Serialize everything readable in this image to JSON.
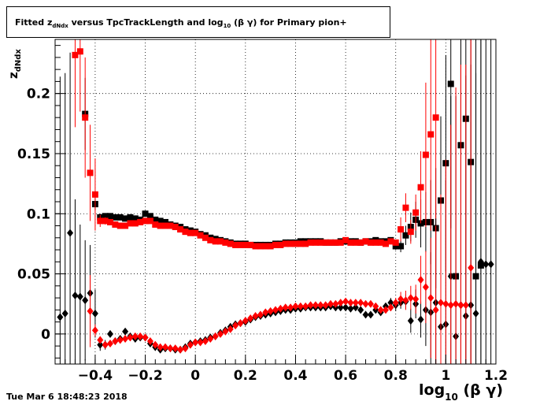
{
  "title": {
    "prefix": "Fitted  z",
    "sub": "dNdx",
    "middle": "  versus TpcTrackLength and log",
    "sub2": "10",
    "suffix": " (β γ) for Primary pion+"
  },
  "timestamp": "Tue Mar  6 18:48:23 2018",
  "colors": {
    "red": "#ff0000",
    "black": "#000000"
  },
  "chart_data": {
    "type": "scatter",
    "xlabel": {
      "main": "log",
      "sub": "10",
      "rest": " (β γ)"
    },
    "ylabel": {
      "main": "z",
      "sub": "dNdx"
    },
    "xlim": [
      -0.56,
      1.2
    ],
    "ylim": [
      -0.025,
      0.245
    ],
    "xticks": [
      -0.4,
      -0.2,
      0,
      0.2,
      0.4,
      0.6,
      0.8,
      1,
      1.2
    ],
    "xtick_labels": [
      "−0.4",
      "−0.2",
      "0",
      "0.2",
      "0.4",
      "0.6",
      "0.8",
      "1",
      "1.2"
    ],
    "yticks": [
      0,
      0.05,
      0.1,
      0.15,
      0.2
    ],
    "ytick_labels": [
      "0",
      "0.05",
      "0.1",
      "0.15",
      "0.2"
    ],
    "grid": true,
    "series": [
      {
        "marker": "square",
        "color": "#000000",
        "x": [
          -0.44,
          -0.4,
          -0.38,
          -0.36,
          -0.34,
          -0.32,
          -0.3,
          -0.28,
          -0.26,
          -0.24,
          -0.22,
          -0.2,
          -0.18,
          -0.16,
          -0.14,
          -0.12,
          -0.1,
          -0.08,
          -0.06,
          -0.04,
          -0.02,
          0.0,
          0.02,
          0.04,
          0.06,
          0.08,
          0.1,
          0.12,
          0.14,
          0.16,
          0.18,
          0.2,
          0.22,
          0.24,
          0.26,
          0.28,
          0.3,
          0.32,
          0.34,
          0.36,
          0.38,
          0.4,
          0.42,
          0.44,
          0.46,
          0.48,
          0.5,
          0.52,
          0.54,
          0.56,
          0.58,
          0.6,
          0.62,
          0.64,
          0.66,
          0.68,
          0.7,
          0.72,
          0.74,
          0.76,
          0.78,
          0.8,
          0.82,
          0.84,
          0.86,
          0.88,
          0.9,
          0.92,
          0.94,
          0.96,
          0.98,
          1.0,
          1.02,
          1.04,
          1.06,
          1.08,
          1.1,
          1.12,
          1.14
        ],
        "y": [
          0.183,
          0.108,
          0.097,
          0.098,
          0.098,
          0.097,
          0.097,
          0.096,
          0.097,
          0.096,
          0.095,
          0.1,
          0.098,
          0.095,
          0.094,
          0.093,
          0.091,
          0.09,
          0.089,
          0.087,
          0.086,
          0.085,
          0.083,
          0.082,
          0.08,
          0.079,
          0.078,
          0.077,
          0.076,
          0.075,
          0.075,
          0.075,
          0.074,
          0.074,
          0.074,
          0.074,
          0.074,
          0.075,
          0.075,
          0.076,
          0.076,
          0.076,
          0.077,
          0.077,
          0.077,
          0.077,
          0.077,
          0.076,
          0.076,
          0.076,
          0.077,
          0.077,
          0.077,
          0.077,
          0.076,
          0.077,
          0.077,
          0.078,
          0.077,
          0.077,
          0.078,
          0.073,
          0.073,
          0.082,
          0.089,
          0.095,
          0.092,
          0.093,
          0.093,
          0.088,
          0.111,
          0.142,
          0.208,
          0.048,
          0.157,
          0.179,
          0.143,
          0.048,
          0.057
        ],
        "err": [
          0.03,
          0.005,
          0.003,
          0.002,
          0.002,
          0.002,
          0.002,
          0.002,
          0.002,
          0.002,
          0.002,
          0.002,
          0.002,
          0.002,
          0.002,
          0.002,
          0.002,
          0.002,
          0.002,
          0.002,
          0.002,
          0.002,
          0.002,
          0.002,
          0.002,
          0.002,
          0.002,
          0.002,
          0.002,
          0.002,
          0.002,
          0.002,
          0.002,
          0.002,
          0.002,
          0.002,
          0.002,
          0.002,
          0.002,
          0.002,
          0.002,
          0.002,
          0.002,
          0.002,
          0.002,
          0.002,
          0.002,
          0.002,
          0.002,
          0.002,
          0.002,
          0.002,
          0.002,
          0.002,
          0.002,
          0.002,
          0.002,
          0.002,
          0.002,
          0.002,
          0.002,
          0.003,
          0.005,
          0.008,
          0.012,
          0.015,
          0.02,
          0.025,
          0.035,
          0.05,
          0.07,
          0.09,
          0.12,
          0.15,
          0.2,
          0.2,
          0.2,
          0.2,
          0.2
        ]
      },
      {
        "marker": "square",
        "color": "#ff0000",
        "x": [
          -0.48,
          -0.46,
          -0.44,
          -0.42,
          -0.4,
          -0.38,
          -0.36,
          -0.34,
          -0.32,
          -0.3,
          -0.28,
          -0.26,
          -0.24,
          -0.22,
          -0.2,
          -0.18,
          -0.16,
          -0.14,
          -0.12,
          -0.1,
          -0.08,
          -0.06,
          -0.04,
          -0.02,
          0.0,
          0.02,
          0.04,
          0.06,
          0.08,
          0.1,
          0.12,
          0.14,
          0.16,
          0.18,
          0.2,
          0.22,
          0.24,
          0.26,
          0.28,
          0.3,
          0.32,
          0.34,
          0.36,
          0.38,
          0.4,
          0.42,
          0.44,
          0.46,
          0.48,
          0.5,
          0.52,
          0.54,
          0.56,
          0.58,
          0.6,
          0.62,
          0.64,
          0.66,
          0.68,
          0.7,
          0.72,
          0.74,
          0.76,
          0.78,
          0.8,
          0.82,
          0.84,
          0.86,
          0.88,
          0.9,
          0.92,
          0.94,
          0.96
        ],
        "y": [
          0.232,
          0.235,
          0.18,
          0.134,
          0.116,
          0.094,
          0.094,
          0.093,
          0.091,
          0.09,
          0.09,
          0.092,
          0.092,
          0.093,
          0.094,
          0.094,
          0.091,
          0.09,
          0.09,
          0.09,
          0.089,
          0.087,
          0.085,
          0.084,
          0.084,
          0.082,
          0.08,
          0.078,
          0.077,
          0.077,
          0.076,
          0.075,
          0.074,
          0.074,
          0.074,
          0.074,
          0.073,
          0.073,
          0.073,
          0.073,
          0.074,
          0.074,
          0.075,
          0.075,
          0.075,
          0.075,
          0.075,
          0.076,
          0.076,
          0.076,
          0.076,
          0.076,
          0.076,
          0.076,
          0.078,
          0.076,
          0.076,
          0.076,
          0.077,
          0.076,
          0.076,
          0.076,
          0.075,
          0.077,
          0.076,
          0.087,
          0.105,
          0.085,
          0.101,
          0.122,
          0.149,
          0.166,
          0.18
        ],
        "err": [
          0.06,
          0.05,
          0.05,
          0.04,
          0.03,
          0.005,
          0.003,
          0.002,
          0.002,
          0.002,
          0.002,
          0.002,
          0.002,
          0.002,
          0.002,
          0.002,
          0.002,
          0.002,
          0.002,
          0.002,
          0.002,
          0.002,
          0.002,
          0.002,
          0.002,
          0.002,
          0.002,
          0.002,
          0.002,
          0.002,
          0.002,
          0.002,
          0.002,
          0.002,
          0.002,
          0.002,
          0.002,
          0.002,
          0.002,
          0.002,
          0.002,
          0.002,
          0.002,
          0.002,
          0.002,
          0.002,
          0.002,
          0.002,
          0.002,
          0.002,
          0.002,
          0.002,
          0.002,
          0.002,
          0.002,
          0.002,
          0.002,
          0.002,
          0.002,
          0.002,
          0.002,
          0.002,
          0.002,
          0.002,
          0.002,
          0.01,
          0.012,
          0.01,
          0.015,
          0.03,
          0.06,
          0.08,
          0.11
        ]
      },
      {
        "marker": "diamond",
        "color": "#000000",
        "x": [
          -0.54,
          -0.52,
          -0.5,
          -0.48,
          -0.46,
          -0.44,
          -0.42,
          -0.4,
          -0.38,
          -0.36,
          -0.34,
          -0.32,
          -0.3,
          -0.28,
          -0.26,
          -0.24,
          -0.22,
          -0.2,
          -0.18,
          -0.16,
          -0.14,
          -0.12,
          -0.1,
          -0.08,
          -0.06,
          -0.04,
          -0.02,
          0.0,
          0.02,
          0.04,
          0.06,
          0.08,
          0.1,
          0.12,
          0.14,
          0.16,
          0.18,
          0.2,
          0.22,
          0.24,
          0.26,
          0.28,
          0.3,
          0.32,
          0.34,
          0.36,
          0.38,
          0.4,
          0.42,
          0.44,
          0.46,
          0.48,
          0.5,
          0.52,
          0.54,
          0.56,
          0.58,
          0.6,
          0.62,
          0.64,
          0.66,
          0.68,
          0.7,
          0.72,
          0.74,
          0.76,
          0.78,
          0.8,
          0.82,
          0.84,
          0.86,
          0.88,
          0.9,
          0.92,
          0.94,
          0.96,
          0.98,
          1.0,
          1.02,
          1.04,
          1.06,
          1.08,
          1.1,
          1.12,
          1.14,
          1.16,
          1.18
        ],
        "y": [
          0.014,
          0.017,
          0.084,
          0.032,
          0.031,
          0.028,
          0.034,
          0.017,
          -0.009,
          -0.009,
          0.0,
          -0.006,
          -0.004,
          0.002,
          -0.002,
          -0.004,
          -0.003,
          -0.003,
          -0.008,
          -0.011,
          -0.013,
          -0.012,
          -0.012,
          -0.013,
          -0.013,
          -0.011,
          -0.008,
          -0.007,
          -0.006,
          -0.005,
          -0.003,
          -0.002,
          0.001,
          0.003,
          0.006,
          0.008,
          0.009,
          0.01,
          0.012,
          0.014,
          0.015,
          0.016,
          0.017,
          0.018,
          0.019,
          0.02,
          0.02,
          0.021,
          0.021,
          0.022,
          0.022,
          0.022,
          0.022,
          0.022,
          0.023,
          0.022,
          0.022,
          0.022,
          0.021,
          0.022,
          0.02,
          0.016,
          0.016,
          0.02,
          0.018,
          0.023,
          0.026,
          0.024,
          0.026,
          0.027,
          0.011,
          0.025,
          0.012,
          0.02,
          0.018,
          0.026,
          0.006,
          0.008,
          0.048,
          -0.002,
          0.024,
          0.015,
          0.024,
          0.017,
          0.06,
          0.058,
          0.058
        ],
        "err": [
          0.2,
          0.2,
          0.15,
          0.08,
          0.06,
          0.05,
          0.04,
          0.02,
          0.005,
          0.004,
          0.003,
          0.002,
          0.002,
          0.002,
          0.002,
          0.002,
          0.002,
          0.002,
          0.002,
          0.002,
          0.002,
          0.002,
          0.002,
          0.002,
          0.002,
          0.002,
          0.002,
          0.002,
          0.002,
          0.002,
          0.002,
          0.002,
          0.002,
          0.002,
          0.002,
          0.002,
          0.002,
          0.002,
          0.002,
          0.002,
          0.002,
          0.002,
          0.002,
          0.002,
          0.002,
          0.002,
          0.002,
          0.002,
          0.002,
          0.002,
          0.002,
          0.002,
          0.002,
          0.002,
          0.002,
          0.002,
          0.002,
          0.002,
          0.002,
          0.002,
          0.002,
          0.002,
          0.002,
          0.002,
          0.002,
          0.003,
          0.004,
          0.005,
          0.005,
          0.006,
          0.01,
          0.012,
          0.015,
          0.03,
          0.05,
          0.07,
          0.09,
          0.12,
          0.15,
          0.2,
          0.2,
          0.2,
          0.2,
          0.2,
          0.2,
          0.2,
          0.2
        ]
      },
      {
        "marker": "diamond",
        "color": "#ff0000",
        "x": [
          -0.42,
          -0.4,
          -0.38,
          -0.36,
          -0.34,
          -0.32,
          -0.3,
          -0.28,
          -0.26,
          -0.24,
          -0.22,
          -0.2,
          -0.18,
          -0.16,
          -0.14,
          -0.12,
          -0.1,
          -0.08,
          -0.06,
          -0.04,
          -0.02,
          0.0,
          0.02,
          0.04,
          0.06,
          0.08,
          0.1,
          0.12,
          0.14,
          0.16,
          0.18,
          0.2,
          0.22,
          0.24,
          0.26,
          0.28,
          0.3,
          0.32,
          0.34,
          0.36,
          0.38,
          0.4,
          0.42,
          0.44,
          0.46,
          0.48,
          0.5,
          0.52,
          0.54,
          0.56,
          0.58,
          0.6,
          0.62,
          0.64,
          0.66,
          0.68,
          0.7,
          0.72,
          0.74,
          0.76,
          0.78,
          0.8,
          0.82,
          0.84,
          0.86,
          0.88,
          0.9,
          0.92,
          0.94,
          0.96,
          0.98,
          1.0,
          1.02,
          1.04,
          1.06,
          1.08,
          1.1
        ],
        "y": [
          0.019,
          0.003,
          -0.005,
          -0.009,
          -0.008,
          -0.006,
          -0.005,
          -0.004,
          -0.003,
          -0.002,
          -0.002,
          -0.003,
          -0.006,
          -0.009,
          -0.011,
          -0.011,
          -0.012,
          -0.012,
          -0.013,
          -0.012,
          -0.009,
          -0.007,
          -0.007,
          -0.006,
          -0.004,
          -0.002,
          0.0,
          0.002,
          0.004,
          0.007,
          0.009,
          0.011,
          0.013,
          0.015,
          0.016,
          0.018,
          0.019,
          0.02,
          0.021,
          0.022,
          0.022,
          0.023,
          0.023,
          0.023,
          0.024,
          0.024,
          0.024,
          0.024,
          0.025,
          0.025,
          0.026,
          0.027,
          0.026,
          0.026,
          0.026,
          0.025,
          0.025,
          0.023,
          0.02,
          0.02,
          0.022,
          0.026,
          0.029,
          0.028,
          0.03,
          0.029,
          0.045,
          0.039,
          0.03,
          0.02,
          0.026,
          0.025,
          0.024,
          0.025,
          0.024,
          0.024,
          0.055
        ],
        "err": [
          0.03,
          0.005,
          0.003,
          0.002,
          0.002,
          0.002,
          0.002,
          0.002,
          0.002,
          0.002,
          0.002,
          0.002,
          0.002,
          0.002,
          0.002,
          0.002,
          0.002,
          0.002,
          0.002,
          0.002,
          0.002,
          0.002,
          0.002,
          0.002,
          0.002,
          0.002,
          0.002,
          0.002,
          0.002,
          0.002,
          0.002,
          0.002,
          0.002,
          0.002,
          0.002,
          0.002,
          0.002,
          0.002,
          0.002,
          0.002,
          0.002,
          0.002,
          0.002,
          0.002,
          0.002,
          0.002,
          0.002,
          0.002,
          0.002,
          0.002,
          0.002,
          0.002,
          0.002,
          0.002,
          0.002,
          0.002,
          0.002,
          0.002,
          0.002,
          0.002,
          0.003,
          0.004,
          0.006,
          0.008,
          0.01,
          0.012,
          0.02,
          0.03,
          0.05,
          0.07,
          0.09,
          0.12,
          0.15,
          0.18,
          0.2,
          0.2,
          0.2
        ]
      }
    ]
  }
}
